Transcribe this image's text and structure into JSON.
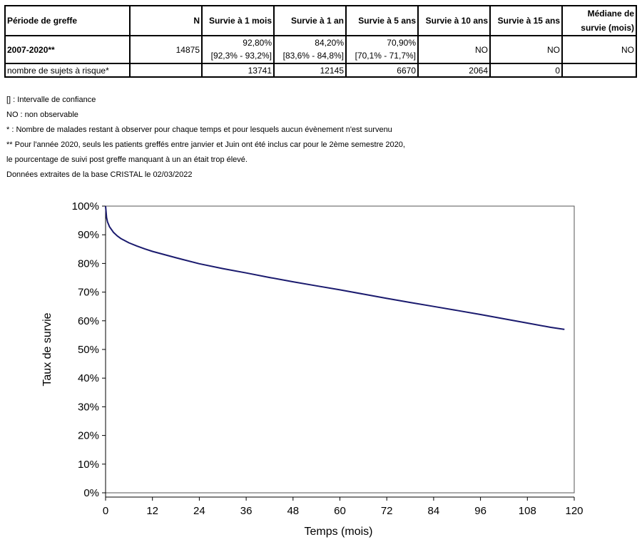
{
  "table": {
    "headers": [
      "Période de greffe",
      "N",
      "Survie à 1 mois",
      "Survie à 1 an",
      "Survie à 5 ans",
      "Survie à 10 ans",
      "Survie à 15 ans",
      "Médiane de",
      "survie (mois)"
    ],
    "row1": {
      "period": "2007-2020**",
      "n": "14875",
      "s1m": "92,80%",
      "s1m_ci": "[92,3% - 93,2%]",
      "s1a": "84,20%",
      "s1a_ci": "[83,6% - 84,8%]",
      "s5a": "70,90%",
      "s5a_ci": "[70,1% - 71,7%]",
      "s10a": "NO",
      "s15a": "NO",
      "median": "NO"
    },
    "row2": {
      "label": "nombre de sujets à risque*",
      "n": "",
      "v1m": "13741",
      "v1a": "12145",
      "v5a": "6670",
      "v10a": "2064",
      "v15a": "0",
      "median": ""
    }
  },
  "notes": [
    "[] : Intervalle de confiance",
    "NO : non observable",
    "* : Nombre de malades restant à observer pour chaque temps et pour lesquels aucun évènement n'est survenu",
    "** Pour l'année 2020, seuls les patients greffés entre janvier et Juin ont été inclus car pour le 2ème semestre 2020,",
    "le pourcentage de suivi post greffe manquant à un an était trop élevé.",
    "Données extraites de la base CRISTAL le 02/03/2022"
  ],
  "chart_data": {
    "type": "line",
    "xlabel": "Temps (mois)",
    "ylabel": "Taux de survie",
    "xlim": [
      0,
      120
    ],
    "ylim": [
      0,
      100
    ],
    "xticks": [
      0,
      12,
      24,
      36,
      48,
      60,
      72,
      84,
      96,
      108,
      120
    ],
    "yticks": [
      0,
      10,
      20,
      30,
      40,
      50,
      60,
      70,
      80,
      90,
      100
    ],
    "ytick_labels": [
      "0%",
      "10%",
      "20%",
      "30%",
      "40%",
      "50%",
      "60%",
      "70%",
      "80%",
      "90%",
      "100%"
    ],
    "line_color": "#1a1a6e",
    "series": [
      {
        "x": [
          0,
          0.25,
          0.5,
          1,
          2,
          3,
          4,
          6,
          8,
          10,
          12,
          18,
          24,
          30,
          36,
          42,
          48,
          54,
          60,
          66,
          72,
          78,
          84,
          90,
          96,
          102,
          108,
          114,
          117.5
        ],
        "y": [
          100,
          96,
          94.5,
          92.8,
          90.9,
          89.6,
          88.6,
          87.2,
          86.1,
          85.1,
          84.2,
          82.0,
          79.9,
          78.2,
          76.7,
          75.1,
          73.6,
          72.2,
          70.8,
          69.3,
          67.8,
          66.4,
          65.0,
          63.6,
          62.2,
          60.7,
          59.2,
          57.7,
          57.0
        ]
      }
    ]
  }
}
